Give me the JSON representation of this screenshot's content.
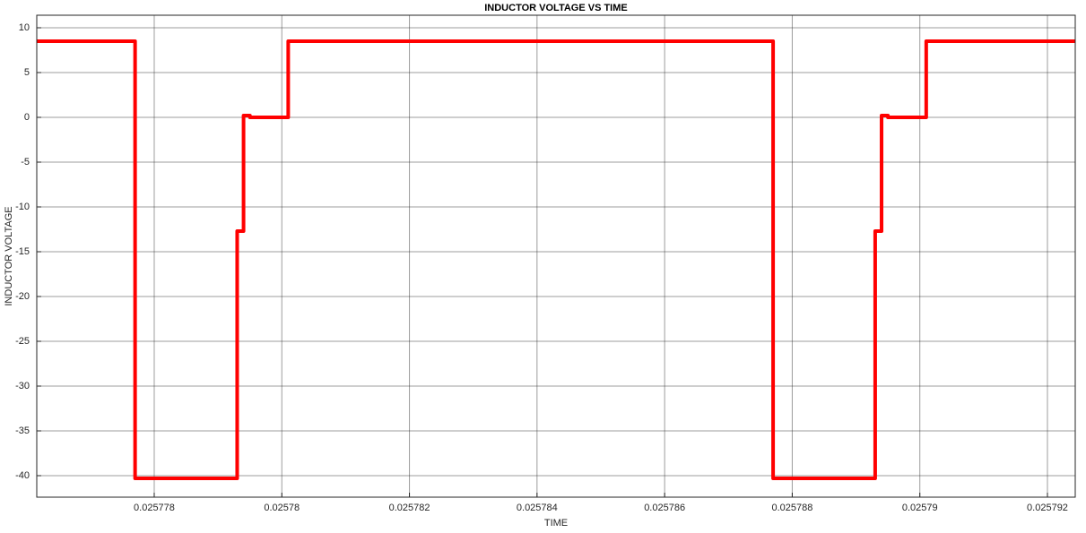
{
  "chart_data": {
    "type": "line",
    "title": "INDUCTOR VOLTAGE VS TIME",
    "x_label": "TIME",
    "y_label": "INDUCTOR VOLTAGE",
    "x": [
      0.025776159,
      0.0257777,
      0.0257777,
      0.0257793,
      0.0257793,
      0.0257794,
      0.0257794,
      0.0257795,
      0.0257795,
      0.0257801,
      0.0257801,
      0.0257877,
      0.0257877,
      0.0257893,
      0.0257893,
      0.0257894,
      0.0257894,
      0.0257895,
      0.0257895,
      0.0257901,
      0.0257901,
      0.0257924357
    ],
    "values": [
      8.5,
      8.5,
      -40.3,
      -40.3,
      -12.7,
      -12.7,
      0.2,
      0.2,
      0,
      0,
      8.5,
      8.5,
      -40.3,
      -40.3,
      -12.7,
      -12.7,
      0.2,
      0.2,
      0,
      0,
      8.5,
      8.5
    ],
    "color": "#ff0000",
    "xlim": [
      0.025776159,
      0.0257924357
    ],
    "xticks": [
      0.025778,
      0.02578,
      0.025782,
      0.025784,
      0.025786,
      0.025788,
      0.02579,
      0.025792
    ],
    "ylim": [
      -42.4,
      11.4
    ],
    "yticks": [
      -40,
      -35,
      -30,
      -25,
      -20,
      -15,
      -10,
      -5,
      0,
      5,
      10
    ],
    "grid": true
  }
}
